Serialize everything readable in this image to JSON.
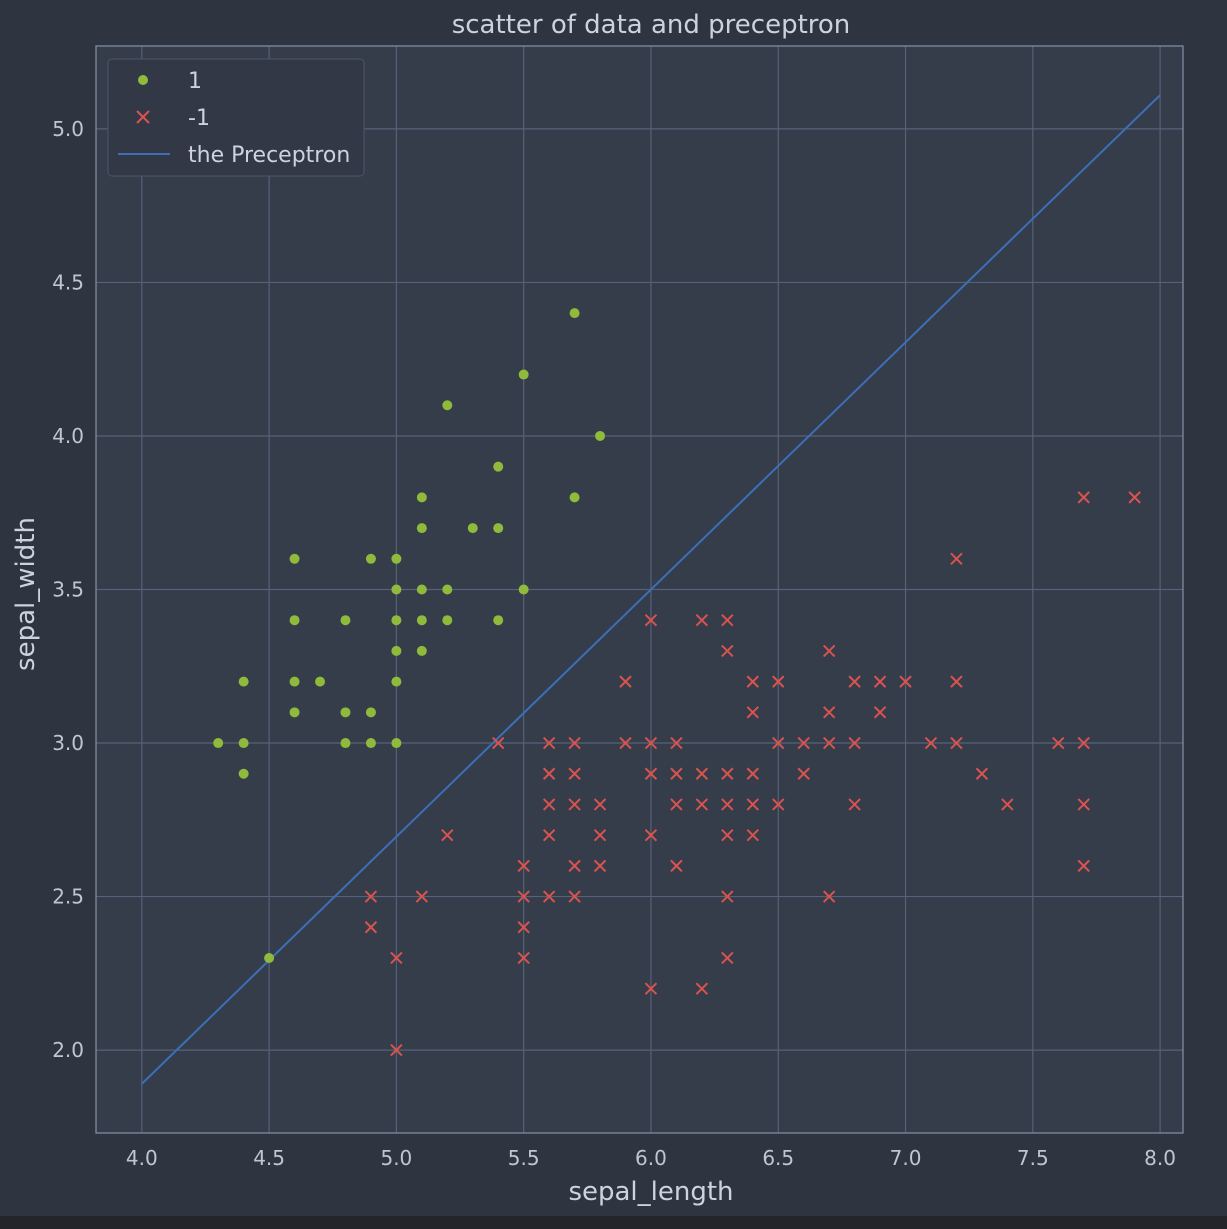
{
  "chart_data": {
    "type": "scatter",
    "title": "scatter of data and preceptron",
    "xlabel": "sepal_length",
    "ylabel": "sepal_width",
    "xlim": [
      3.82,
      8.09
    ],
    "ylim": [
      1.73,
      5.27
    ],
    "xticks": [
      "4.0",
      "4.5",
      "5.0",
      "5.5",
      "6.0",
      "6.5",
      "7.0",
      "7.5",
      "8.0"
    ],
    "yticks": [
      "2.0",
      "2.5",
      "3.0",
      "3.5",
      "4.0",
      "4.5",
      "5.0"
    ],
    "grid": true,
    "legend_position": "top-left",
    "series": [
      {
        "name": "1",
        "marker": "circle",
        "color": "#8fba3b",
        "points": [
          [
            4.3,
            3.0
          ],
          [
            4.4,
            3.0
          ],
          [
            4.4,
            2.9
          ],
          [
            4.4,
            3.2
          ],
          [
            4.5,
            2.3
          ],
          [
            4.6,
            3.6
          ],
          [
            4.6,
            3.4
          ],
          [
            4.6,
            3.2
          ],
          [
            4.6,
            3.1
          ],
          [
            4.7,
            3.2
          ],
          [
            4.8,
            3.4
          ],
          [
            4.8,
            3.1
          ],
          [
            4.8,
            3.0
          ],
          [
            4.9,
            3.6
          ],
          [
            4.9,
            3.1
          ],
          [
            4.9,
            3.0
          ],
          [
            5.0,
            3.6
          ],
          [
            5.0,
            3.5
          ],
          [
            5.0,
            3.4
          ],
          [
            5.0,
            3.3
          ],
          [
            5.0,
            3.2
          ],
          [
            5.0,
            3.0
          ],
          [
            5.1,
            3.8
          ],
          [
            5.1,
            3.7
          ],
          [
            5.1,
            3.5
          ],
          [
            5.1,
            3.4
          ],
          [
            5.1,
            3.3
          ],
          [
            5.2,
            4.1
          ],
          [
            5.2,
            3.5
          ],
          [
            5.2,
            3.4
          ],
          [
            5.3,
            3.7
          ],
          [
            5.4,
            3.9
          ],
          [
            5.4,
            3.7
          ],
          [
            5.4,
            3.4
          ],
          [
            5.5,
            4.2
          ],
          [
            5.5,
            3.5
          ],
          [
            5.7,
            4.4
          ],
          [
            5.7,
            3.8
          ],
          [
            5.8,
            4.0
          ]
        ]
      },
      {
        "name": "-1",
        "marker": "x",
        "color": "#d9534f",
        "points": [
          [
            4.9,
            2.5
          ],
          [
            4.9,
            2.4
          ],
          [
            5.0,
            2.3
          ],
          [
            5.0,
            2.0
          ],
          [
            5.1,
            2.5
          ],
          [
            5.2,
            2.7
          ],
          [
            5.4,
            3.0
          ],
          [
            5.5,
            2.6
          ],
          [
            5.5,
            2.5
          ],
          [
            5.5,
            2.4
          ],
          [
            5.5,
            2.3
          ],
          [
            5.6,
            3.0
          ],
          [
            5.6,
            2.9
          ],
          [
            5.6,
            2.8
          ],
          [
            5.6,
            2.7
          ],
          [
            5.6,
            2.5
          ],
          [
            5.7,
            3.0
          ],
          [
            5.7,
            2.9
          ],
          [
            5.7,
            2.8
          ],
          [
            5.7,
            2.6
          ],
          [
            5.7,
            2.5
          ],
          [
            5.8,
            2.8
          ],
          [
            5.8,
            2.7
          ],
          [
            5.8,
            2.6
          ],
          [
            5.9,
            3.2
          ],
          [
            5.9,
            3.0
          ],
          [
            6.0,
            3.4
          ],
          [
            6.0,
            3.0
          ],
          [
            6.0,
            2.9
          ],
          [
            6.0,
            2.7
          ],
          [
            6.0,
            2.2
          ],
          [
            6.1,
            3.0
          ],
          [
            6.1,
            2.9
          ],
          [
            6.1,
            2.8
          ],
          [
            6.1,
            2.6
          ],
          [
            6.2,
            3.4
          ],
          [
            6.2,
            2.9
          ],
          [
            6.2,
            2.8
          ],
          [
            6.2,
            2.2
          ],
          [
            6.3,
            3.4
          ],
          [
            6.3,
            3.3
          ],
          [
            6.3,
            2.9
          ],
          [
            6.3,
            2.8
          ],
          [
            6.3,
            2.7
          ],
          [
            6.3,
            2.5
          ],
          [
            6.3,
            2.3
          ],
          [
            6.4,
            3.2
          ],
          [
            6.4,
            3.1
          ],
          [
            6.4,
            2.9
          ],
          [
            6.4,
            2.8
          ],
          [
            6.4,
            2.7
          ],
          [
            6.5,
            3.2
          ],
          [
            6.5,
            3.0
          ],
          [
            6.5,
            2.8
          ],
          [
            6.6,
            3.0
          ],
          [
            6.6,
            2.9
          ],
          [
            6.7,
            3.3
          ],
          [
            6.7,
            3.1
          ],
          [
            6.7,
            3.0
          ],
          [
            6.7,
            2.5
          ],
          [
            6.8,
            3.2
          ],
          [
            6.8,
            3.0
          ],
          [
            6.8,
            2.8
          ],
          [
            6.9,
            3.2
          ],
          [
            6.9,
            3.1
          ],
          [
            7.0,
            3.2
          ],
          [
            7.1,
            3.0
          ],
          [
            7.2,
            3.6
          ],
          [
            7.2,
            3.2
          ],
          [
            7.2,
            3.0
          ],
          [
            7.3,
            2.9
          ],
          [
            7.4,
            2.8
          ],
          [
            7.6,
            3.0
          ],
          [
            7.7,
            3.8
          ],
          [
            7.7,
            3.0
          ],
          [
            7.7,
            2.8
          ],
          [
            7.7,
            2.6
          ],
          [
            7.9,
            3.8
          ]
        ]
      },
      {
        "name": "the Preceptron",
        "marker": "line",
        "color": "#3d6fb8",
        "points": [
          [
            4.0,
            1.89
          ],
          [
            8.0,
            5.11
          ]
        ]
      }
    ]
  }
}
